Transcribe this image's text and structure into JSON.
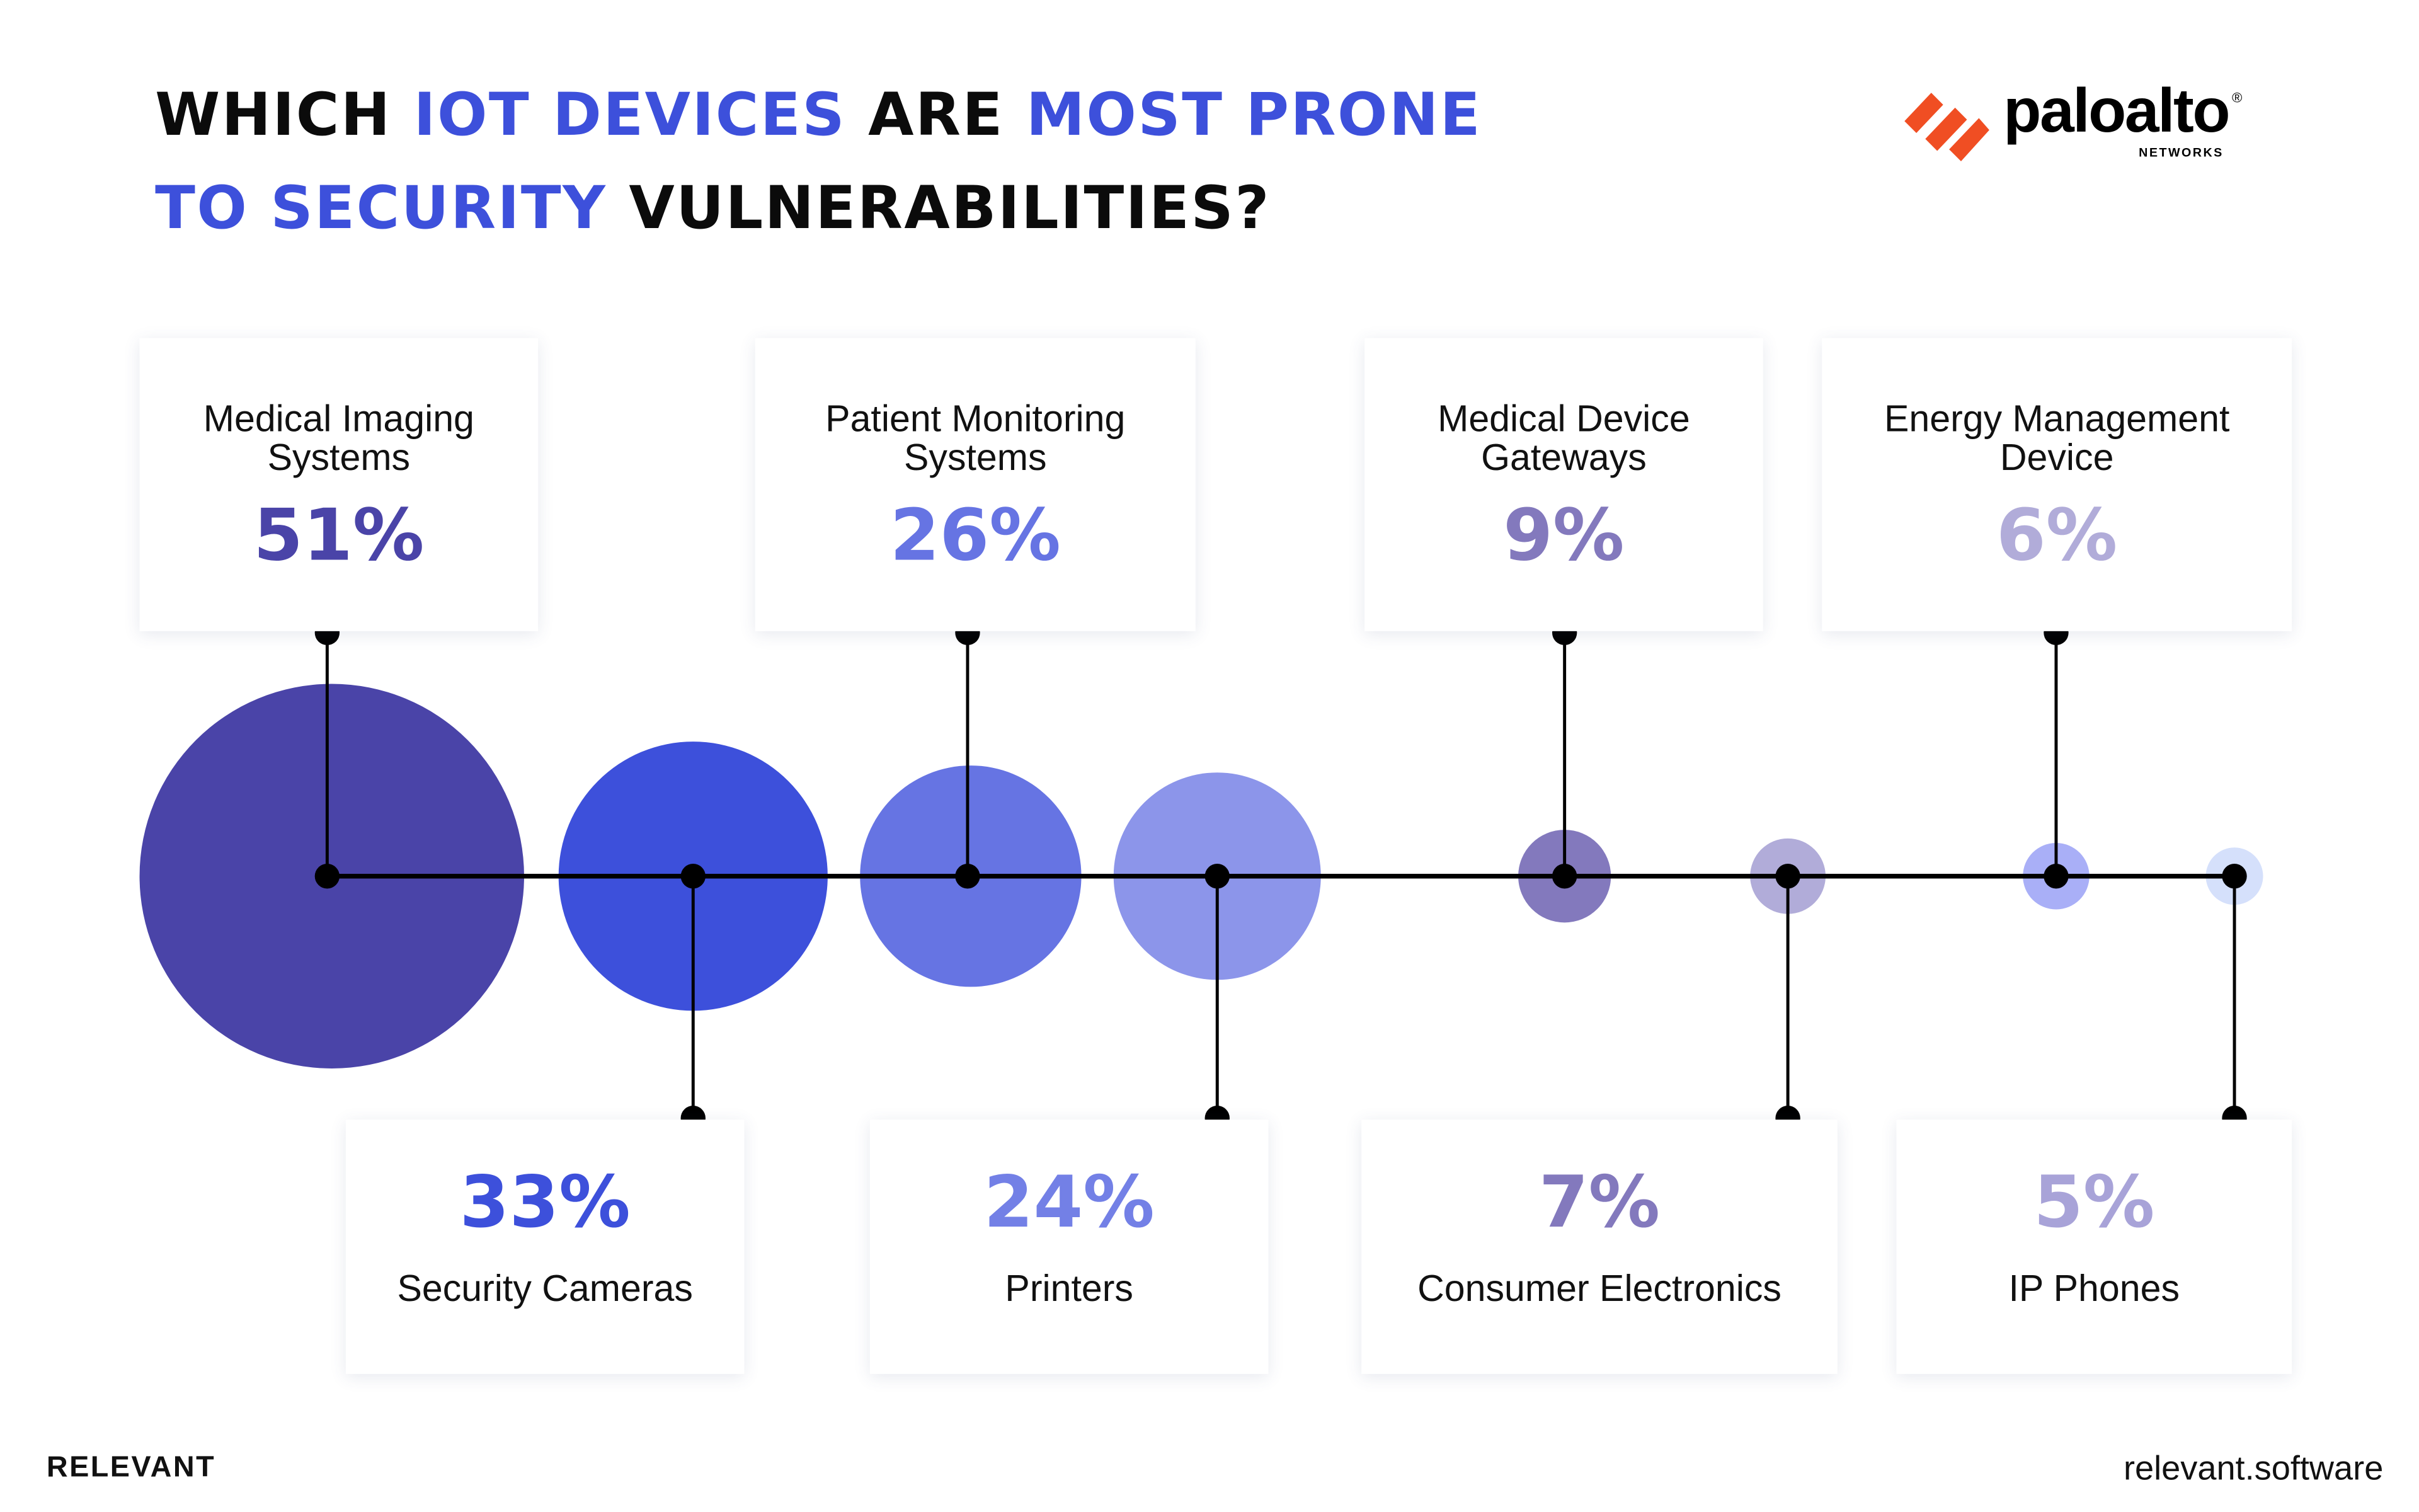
{
  "title": {
    "line1": [
      {
        "text": "WHICH ",
        "highlight": false
      },
      {
        "text": "IOT DEVICES",
        "highlight": true
      },
      {
        "text": " ARE ",
        "highlight": false
      },
      {
        "text": "MOST PRONE",
        "highlight": true
      }
    ],
    "line2": [
      {
        "text": "TO SECURITY",
        "highlight": true
      },
      {
        "text": " VULNERABILITIES?",
        "highlight": false
      }
    ]
  },
  "logo": {
    "text": "paloalto",
    "sub": "NETWORKS",
    "mark": "®",
    "color": "#f04e23"
  },
  "footer": {
    "brand": "RELEVANT",
    "site": "relevant.software"
  },
  "chart_data": {
    "type": "bubble",
    "title": "WHICH IOT DEVICES ARE MOST PRONE TO SECURITY VULNERABILITIES?",
    "categories": [
      "Medical Imaging Systems",
      "Security Cameras",
      "Patient Monitoring Systems",
      "Printers",
      "Medical Device Gateways",
      "Consumer Electronics",
      "Energy Management Device",
      "IP Phones"
    ],
    "values": [
      51,
      33,
      26,
      24,
      9,
      7,
      6,
      5
    ],
    "labels": [
      "51%",
      "33%",
      "26%",
      "24%",
      "9%",
      "7%",
      "6%",
      "5%"
    ],
    "label_position": [
      "top",
      "bottom",
      "top",
      "bottom",
      "top",
      "bottom",
      "top",
      "bottom"
    ],
    "colors": [
      "#4a44a8",
      "#3d50db",
      "#6674e3",
      "#8c95ea",
      "#8379bd",
      "#b1acd9",
      "#a9aff7",
      "#d5e0fb"
    ],
    "text_colors": [
      "#4a44a8",
      "#3d50db",
      "#6674e3",
      "#7380e6",
      "#8379bd",
      "#8379bd",
      "#b1acd9",
      "#a8a3d8"
    ]
  }
}
